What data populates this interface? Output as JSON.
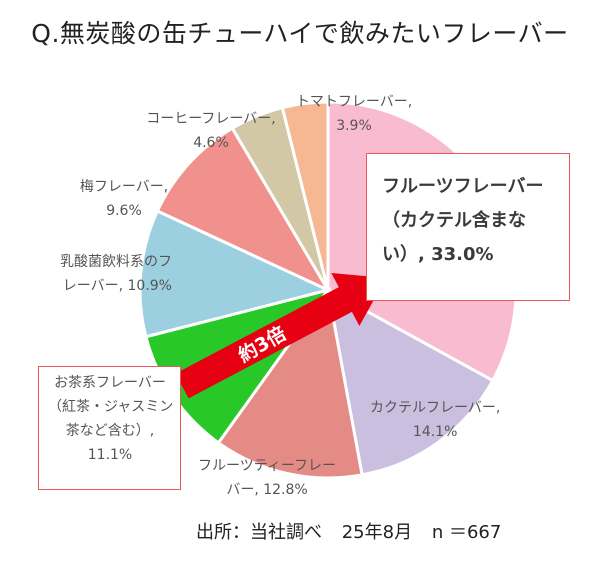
{
  "title": "Q.無炭酸の缶チューハイで飲みたいフレーバー",
  "source": {
    "text": "出所：当社調べ",
    "date": "25年8月",
    "n": "n ＝667"
  },
  "arrow_label": "約3倍",
  "colors": {
    "highlight_border": "#e8595a",
    "arrow": "#e60012"
  },
  "chart_data": {
    "type": "pie",
    "start": "12 o'clock",
    "direction": "clockwise",
    "slices": [
      {
        "label": "フルーツフレーバー（カクテル含まない）",
        "value": 33.0,
        "color": "#f8bbd0",
        "label_lines": [
          "フルーツフレーバー",
          "（カクテル含まな",
          "い）, 33.0%"
        ]
      },
      {
        "label": "カクテルフレーバー",
        "value": 14.1,
        "color": "#cbbfe0",
        "label_lines": [
          "カクテルフレーバー,",
          "14.1%"
        ]
      },
      {
        "label": "フルーツティーフレーバー",
        "value": 12.8,
        "color": "#e58b86",
        "label_lines": [
          "フルーツティーフレー",
          "バー, 12.8%"
        ]
      },
      {
        "label": "お茶系フレーバー（紅茶・ジャスミン茶など含む）",
        "value": 11.1,
        "color": "#28c828",
        "label_lines": [
          "お茶系フレーバー",
          "（紅茶・ジャスミン",
          "茶など含む）,",
          "11.1%"
        ]
      },
      {
        "label": "乳酸菌飲料系のフレーバー",
        "value": 10.9,
        "color": "#9ccfdf",
        "label_lines": [
          "乳酸菌飲料系のフ",
          "レーバー, 10.9%"
        ]
      },
      {
        "label": "梅フレーバー",
        "value": 9.6,
        "color": "#f1918d",
        "label_lines": [
          "梅フレーバー,",
          "9.6%"
        ]
      },
      {
        "label": "コーヒーフレーバー",
        "value": 4.6,
        "color": "#d2c8a6",
        "label_lines": [
          "コーヒーフレーバー,",
          "4.6%"
        ]
      },
      {
        "label": "トマトフレーバー",
        "value": 3.9,
        "color": "#f6b893",
        "label_lines": [
          "トマトフレーバー,",
          "3.9%"
        ]
      }
    ]
  }
}
